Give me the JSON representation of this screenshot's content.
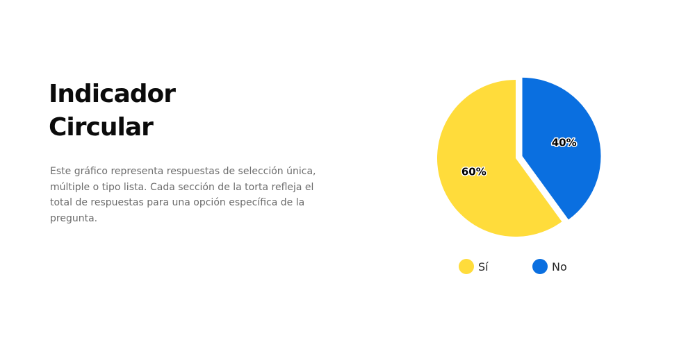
{
  "heading": {
    "line1": "Indicador",
    "line2": "Circular"
  },
  "description": "Este gráfico representa respuestas de selección única, múltiple o tipo lista. Cada sección de la torta refleja el total de respuestas para una opción específica de la pregunta.",
  "chart_data": {
    "type": "pie",
    "title": "",
    "slices": [
      {
        "label": "Sí",
        "value": 60,
        "display": "60%",
        "color": "#FFDC3B",
        "exploded": false
      },
      {
        "label": "No",
        "value": 40,
        "display": "40%",
        "color": "#0A6FE0",
        "exploded": true
      }
    ],
    "legend_position": "bottom"
  }
}
